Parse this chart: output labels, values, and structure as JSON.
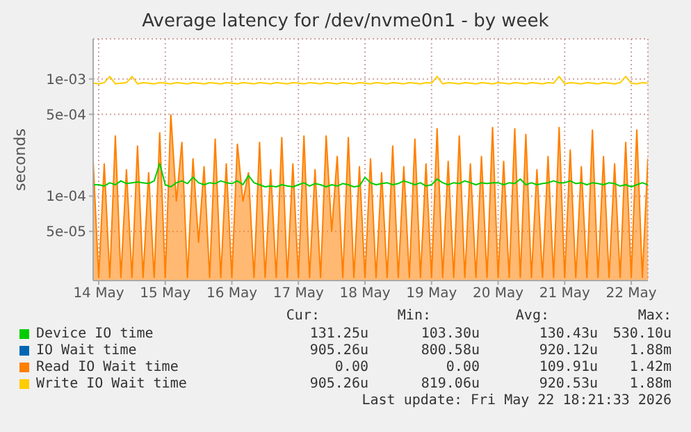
{
  "chart_data": {
    "type": "line",
    "title": "Average latency for /dev/nvme0n1 - by week",
    "ylabel": "seconds",
    "log": true,
    "grid": true,
    "legend": "bottom",
    "marker": "none",
    "ylim": [
      1.9e-05,
      0.0022
    ],
    "yticks": [
      {
        "value": 5e-05,
        "label": "5e-05"
      },
      {
        "value": 0.0001,
        "label": "1e-04"
      },
      {
        "value": 0.0005,
        "label": "5e-04"
      },
      {
        "value": 0.001,
        "label": "1e-03"
      }
    ],
    "xlim": [
      "2026-05-13T22:00",
      "2026-05-22T06:00"
    ],
    "xticks": [
      {
        "value": "2026-05-14T00:00",
        "label": "14 May"
      },
      {
        "value": "2026-05-15T00:00",
        "label": "15 May"
      },
      {
        "value": "2026-05-16T00:00",
        "label": "16 May"
      },
      {
        "value": "2026-05-17T00:00",
        "label": "17 May"
      },
      {
        "value": "2026-05-18T00:00",
        "label": "18 May"
      },
      {
        "value": "2026-05-19T00:00",
        "label": "19 May"
      },
      {
        "value": "2026-05-20T00:00",
        "label": "20 May"
      },
      {
        "value": "2026-05-21T00:00",
        "label": "21 May"
      },
      {
        "value": "2026-05-22T00:00",
        "label": "22 May"
      }
    ],
    "x": [
      "2026-05-13T22:00",
      "2026-05-14T00:00",
      "2026-05-14T02:00",
      "2026-05-14T04:00",
      "2026-05-14T06:00",
      "2026-05-14T08:00",
      "2026-05-14T10:00",
      "2026-05-14T12:00",
      "2026-05-14T14:00",
      "2026-05-14T16:00",
      "2026-05-14T18:00",
      "2026-05-14T20:00",
      "2026-05-14T22:00",
      "2026-05-15T00:00",
      "2026-05-15T02:00",
      "2026-05-15T04:00",
      "2026-05-15T06:00",
      "2026-05-15T08:00",
      "2026-05-15T10:00",
      "2026-05-15T12:00",
      "2026-05-15T14:00",
      "2026-05-15T16:00",
      "2026-05-15T18:00",
      "2026-05-15T20:00",
      "2026-05-15T22:00",
      "2026-05-16T00:00",
      "2026-05-16T02:00",
      "2026-05-16T04:00",
      "2026-05-16T06:00",
      "2026-05-16T08:00",
      "2026-05-16T10:00",
      "2026-05-16T12:00",
      "2026-05-16T14:00",
      "2026-05-16T16:00",
      "2026-05-16T18:00",
      "2026-05-16T20:00",
      "2026-05-16T22:00",
      "2026-05-17T00:00",
      "2026-05-17T02:00",
      "2026-05-17T04:00",
      "2026-05-17T06:00",
      "2026-05-17T08:00",
      "2026-05-17T10:00",
      "2026-05-17T12:00",
      "2026-05-17T14:00",
      "2026-05-17T16:00",
      "2026-05-17T18:00",
      "2026-05-17T20:00",
      "2026-05-17T22:00",
      "2026-05-18T00:00",
      "2026-05-18T02:00",
      "2026-05-18T04:00",
      "2026-05-18T06:00",
      "2026-05-18T08:00",
      "2026-05-18T10:00",
      "2026-05-18T12:00",
      "2026-05-18T14:00",
      "2026-05-18T16:00",
      "2026-05-18T18:00",
      "2026-05-18T20:00",
      "2026-05-18T22:00",
      "2026-05-19T00:00",
      "2026-05-19T02:00",
      "2026-05-19T04:00",
      "2026-05-19T06:00",
      "2026-05-19T08:00",
      "2026-05-19T10:00",
      "2026-05-19T12:00",
      "2026-05-19T14:00",
      "2026-05-19T16:00",
      "2026-05-19T18:00",
      "2026-05-19T20:00",
      "2026-05-19T22:00",
      "2026-05-20T00:00",
      "2026-05-20T02:00",
      "2026-05-20T04:00",
      "2026-05-20T06:00",
      "2026-05-20T08:00",
      "2026-05-20T10:00",
      "2026-05-20T12:00",
      "2026-05-20T14:00",
      "2026-05-20T16:00",
      "2026-05-20T18:00",
      "2026-05-20T20:00",
      "2026-05-20T22:00",
      "2026-05-21T00:00",
      "2026-05-21T02:00",
      "2026-05-21T04:00",
      "2026-05-21T06:00",
      "2026-05-21T08:00",
      "2026-05-21T10:00",
      "2026-05-21T12:00",
      "2026-05-21T14:00",
      "2026-05-21T16:00",
      "2026-05-21T18:00",
      "2026-05-21T20:00",
      "2026-05-21T22:00",
      "2026-05-22T00:00",
      "2026-05-22T02:00",
      "2026-05-22T04:00",
      "2026-05-22T06:00"
    ],
    "series": [
      {
        "name": "Device IO time",
        "color": "#00cc00",
        "values": [
          0.000125,
          0.000125,
          0.000122,
          0.00013,
          0.000125,
          0.000135,
          0.000128,
          0.00013,
          0.000132,
          0.00013,
          0.000128,
          0.000135,
          0.00019,
          0.000125,
          0.00012,
          0.00013,
          0.000135,
          0.000128,
          0.000145,
          0.00013,
          0.000125,
          0.00013,
          0.000128,
          0.000135,
          0.00013,
          0.000128,
          0.000135,
          0.000125,
          0.00015,
          0.00013,
          0.000125,
          0.00012,
          0.000122,
          0.00012,
          0.000125,
          0.000122,
          0.00012,
          0.000125,
          0.00013,
          0.000122,
          0.000128,
          0.000125,
          0.00012,
          0.000125,
          0.000122,
          0.000128,
          0.000125,
          0.00012,
          0.000122,
          0.000145,
          0.00013,
          0.000125,
          0.000128,
          0.00013,
          0.000125,
          0.000128,
          0.000135,
          0.00013,
          0.000125,
          0.00013,
          0.000122,
          0.000125,
          0.00014,
          0.00013,
          0.000125,
          0.00013,
          0.000128,
          0.000135,
          0.00013,
          0.000125,
          0.00013,
          0.000128,
          0.00013,
          0.00013,
          0.000125,
          0.00013,
          0.000128,
          0.00014,
          0.000125,
          0.00013,
          0.000125,
          0.000128,
          0.00013,
          0.000135,
          0.00013,
          0.00013,
          0.000135,
          0.000128,
          0.00013,
          0.000125,
          0.00013,
          0.000128,
          0.000125,
          0.00013,
          0.000128,
          0.000122,
          0.000125,
          0.00012,
          0.000125,
          0.00013,
          0.000125
        ]
      },
      {
        "name": "IO Wait time",
        "color": "#0066b3",
        "values": [
          null,
          null,
          null,
          null,
          null,
          null,
          null,
          null,
          null,
          null,
          null,
          null,
          null,
          null,
          null,
          null,
          null,
          null,
          null,
          null,
          null,
          null,
          null,
          null,
          null,
          null,
          null,
          null,
          null,
          null,
          null,
          null,
          null,
          null,
          null,
          null,
          null,
          null,
          null,
          null,
          null,
          null,
          null,
          null,
          null,
          null,
          null,
          null,
          null,
          null,
          null,
          null,
          null,
          null,
          null,
          null,
          null,
          null,
          null,
          null,
          null,
          null,
          null,
          null,
          null,
          null,
          null,
          null,
          null,
          null,
          null,
          null,
          null,
          null,
          null,
          null,
          null,
          null,
          null,
          null,
          null,
          null,
          null,
          null,
          null,
          null,
          null,
          null,
          null,
          null,
          null,
          null,
          null,
          null,
          null,
          null,
          null,
          null,
          null,
          null,
          null
        ]
      },
      {
        "name": "Read IO Wait time",
        "type": "area",
        "color": "#ff8000",
        "values": [
          0.0002,
          2e-05,
          0.00019,
          2e-05,
          0.00033,
          2e-05,
          0.00017,
          2e-05,
          0.00027,
          2e-05,
          0.00016,
          2e-05,
          0.00035,
          2e-05,
          0.0005,
          9e-05,
          0.00029,
          2e-05,
          0.00021,
          4e-05,
          0.00018,
          2e-05,
          0.00031,
          2e-05,
          0.00019,
          2e-05,
          0.00028,
          9e-05,
          0.00016,
          2e-05,
          0.00029,
          2e-05,
          0.00017,
          2e-05,
          0.00032,
          2e-05,
          0.00019,
          2e-05,
          0.00033,
          2e-05,
          0.00017,
          2e-05,
          0.00033,
          5e-05,
          0.00022,
          2e-05,
          0.00032,
          2e-05,
          0.00018,
          2e-05,
          0.00021,
          2e-05,
          0.00016,
          2e-05,
          0.00027,
          2e-05,
          0.00018,
          2e-05,
          0.00031,
          2e-05,
          0.00019,
          2e-05,
          0.00038,
          2e-05,
          0.0002,
          2e-05,
          0.00033,
          2e-05,
          0.00019,
          2e-05,
          0.00022,
          2e-05,
          0.00039,
          2e-05,
          0.0002,
          2e-05,
          0.00038,
          2e-05,
          0.00034,
          2e-05,
          0.00017,
          2e-05,
          0.00022,
          2e-05,
          0.00039,
          2e-05,
          0.00025,
          2e-05,
          0.00018,
          2e-05,
          0.00037,
          2e-05,
          0.00022,
          2e-05,
          0.00019,
          2e-05,
          0.00029,
          2e-05,
          0.00037,
          2e-05,
          0.00021
        ]
      },
      {
        "name": "Write IO Wait time",
        "color": "#ffcc00",
        "values": [
          0.00092,
          0.00091,
          0.00093,
          0.00105,
          0.00091,
          0.00092,
          0.00093,
          0.00105,
          0.00091,
          0.00093,
          0.00092,
          0.00091,
          0.00093,
          0.00092,
          0.00091,
          0.00093,
          0.00092,
          0.00091,
          0.00093,
          0.00092,
          0.00091,
          0.00093,
          0.00092,
          0.00091,
          0.00093,
          0.00092,
          0.00091,
          0.00093,
          0.00092,
          0.00091,
          0.00093,
          0.00092,
          0.00091,
          0.00093,
          0.00092,
          0.00091,
          0.00093,
          0.00092,
          0.00091,
          0.00093,
          0.00092,
          0.00091,
          0.00093,
          0.00092,
          0.00091,
          0.00093,
          0.00092,
          0.00091,
          0.00093,
          0.00092,
          0.00091,
          0.00093,
          0.00092,
          0.00091,
          0.00093,
          0.00092,
          0.00091,
          0.00093,
          0.00092,
          0.00091,
          0.00093,
          0.00092,
          0.00105,
          0.00091,
          0.00093,
          0.00092,
          0.00091,
          0.00093,
          0.00092,
          0.00091,
          0.00093,
          0.00092,
          0.00091,
          0.00093,
          0.00092,
          0.00091,
          0.00093,
          0.00092,
          0.00091,
          0.00093,
          0.00092,
          0.00091,
          0.00093,
          0.00092,
          0.00105,
          0.00091,
          0.00093,
          0.00092,
          0.00091,
          0.00093,
          0.00092,
          0.00091,
          0.00093,
          0.00092,
          0.00091,
          0.00093,
          0.00105,
          0.00092,
          0.00091,
          0.00093,
          0.00092
        ]
      }
    ],
    "annotations": [
      "Cur:",
      "Min:",
      "Avg:",
      "Max:",
      "131.25u",
      "103.30u",
      "130.43u",
      "530.10u",
      "905.26u",
      "800.58u",
      "920.12u",
      "1.88m",
      "0.00",
      "0.00",
      "109.91u",
      "1.42m",
      "905.26u",
      "819.06u",
      "920.53u",
      "1.88m",
      "Last update: Fri May 22 18:21:33 2026"
    ]
  }
}
